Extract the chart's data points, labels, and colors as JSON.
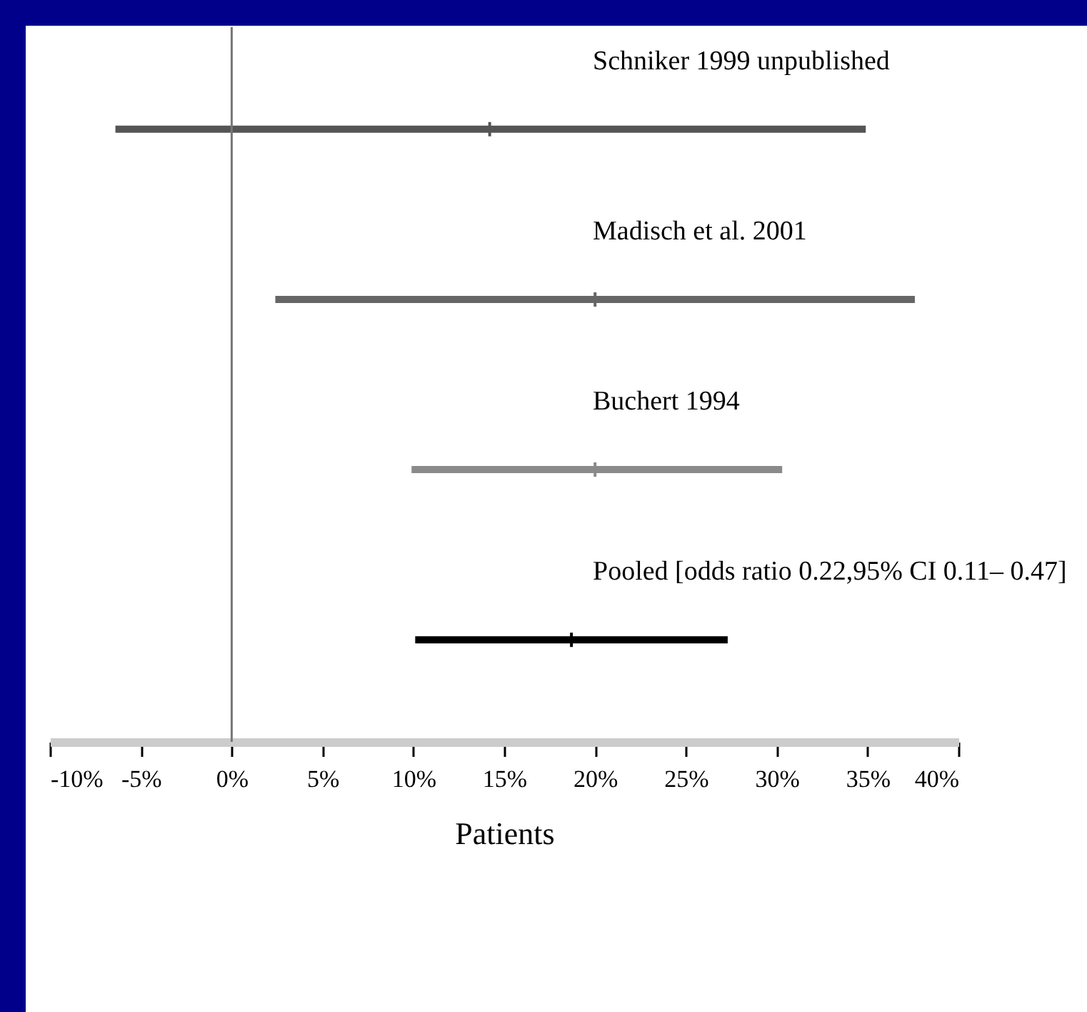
{
  "chart_data": {
    "type": "scatter",
    "orientation": "horizontal",
    "xlabel": "Patients",
    "categories": [
      "Schniker 1999 unpublished",
      "Madisch et al. 2001",
      "Buchert 1994",
      "Pooled [odds ratio 0.22,95% CI 0.11– 0.47]"
    ],
    "values": [
      14.2,
      20.0,
      20.0,
      18.7
    ],
    "errors": [
      [
        -6.4,
        34.9
      ],
      [
        2.4,
        37.6
      ],
      [
        9.9,
        30.3
      ],
      [
        10.1,
        27.3
      ]
    ],
    "colors": [
      "#555555",
      "#666666",
      "#8a8a8a",
      "#000000"
    ],
    "xlim": [
      -10,
      40
    ],
    "xticks": [
      {
        "value": -10,
        "label": "-10%"
      },
      {
        "value": -5,
        "label": "-5%"
      },
      {
        "value": 0,
        "label": "0%"
      },
      {
        "value": 5,
        "label": "5%"
      },
      {
        "value": 10,
        "label": "10%"
      },
      {
        "value": 15,
        "label": "15%"
      },
      {
        "value": 20,
        "label": "20%"
      },
      {
        "value": 25,
        "label": "25%"
      },
      {
        "value": 30,
        "label": "30%"
      },
      {
        "value": 35,
        "label": "35%"
      },
      {
        "value": 40,
        "label": "40%"
      }
    ],
    "ref_lines": [
      {
        "axis": "x",
        "value": 0,
        "color": "#777777"
      }
    ],
    "grid": false
  }
}
